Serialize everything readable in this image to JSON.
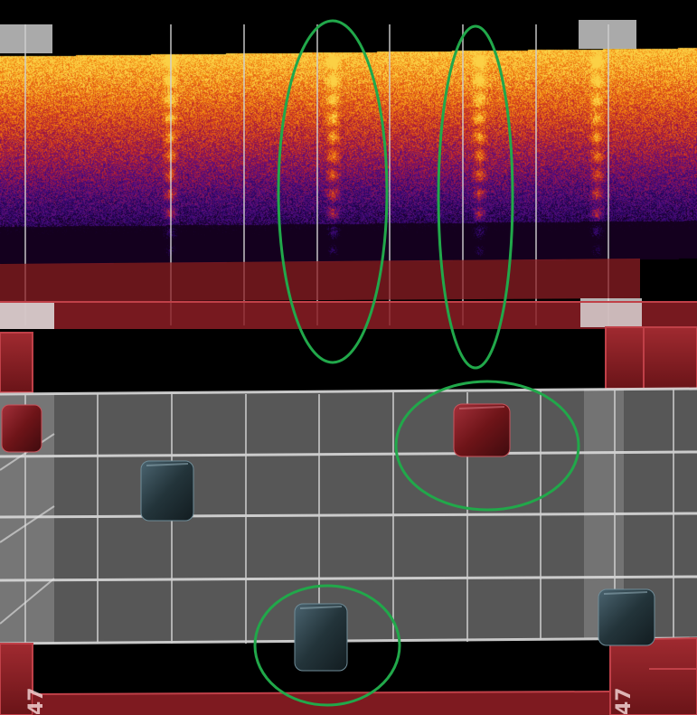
{
  "view": {
    "background_color": "#000000",
    "spectrogram_colormap": [
      "#14001e",
      "#2a0666",
      "#5a0e80",
      "#a3173d",
      "#d8441a",
      "#f38a12",
      "#fbd045"
    ],
    "floor_color": "#575757",
    "grid_line_color": "#d9d9d9",
    "frame_color": "#8c1d24",
    "frame_highlight_color": "#e0e0e0",
    "highlight_ring_color": "#21a84a"
  },
  "axis": {
    "label_left": "47",
    "label_right": "47"
  },
  "markers": {
    "red_cube_color": "#6e1418",
    "dark_cube_color": "#23343a"
  },
  "annotations": {
    "ring_count": 4
  }
}
